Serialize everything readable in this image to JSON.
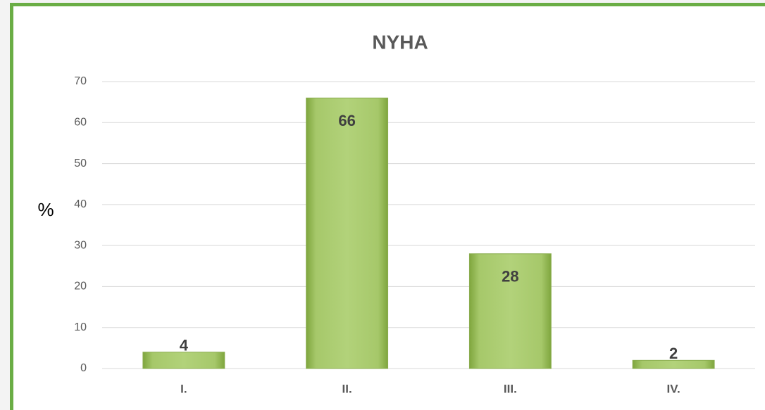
{
  "chart_data": {
    "type": "bar",
    "title": "NYHA",
    "y_label": "%",
    "categories": [
      "I.",
      "II.",
      "III.",
      "IV."
    ],
    "values": [
      4,
      66,
      28,
      2
    ],
    "color": "#9bbb59",
    "ylim": [
      0,
      70
    ],
    "yticks": [
      0,
      10,
      20,
      30,
      40,
      50,
      60,
      70
    ],
    "grid": true
  }
}
